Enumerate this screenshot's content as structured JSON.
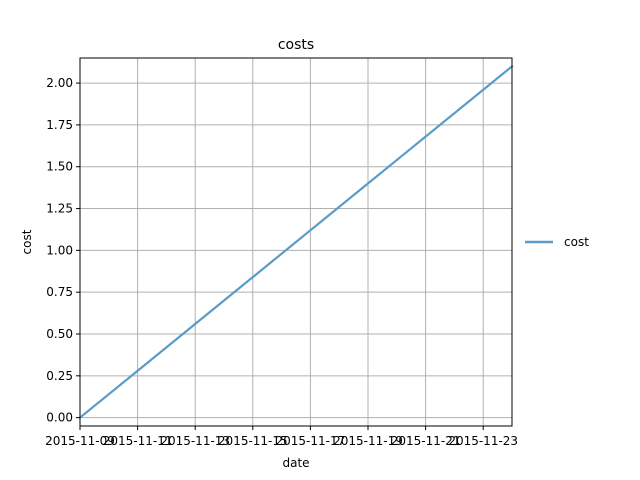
{
  "chart_data": {
    "type": "line",
    "title": "costs",
    "xlabel": "date",
    "ylabel": "cost",
    "x": [
      "2015-11-09",
      "2015-11-24"
    ],
    "series": [
      {
        "name": "cost",
        "x": [
          "2015-11-09",
          "2015-11-24"
        ],
        "values": [
          0.0,
          2.1
        ]
      }
    ],
    "x_ticks": [
      "2015-11-09",
      "2015-11-11",
      "2015-11-13",
      "2015-11-15",
      "2015-11-17",
      "2015-11-19",
      "2015-11-21",
      "2015-11-23"
    ],
    "y_ticks": [
      "0.00",
      "0.25",
      "0.50",
      "0.75",
      "1.00",
      "1.25",
      "1.50",
      "1.75",
      "2.00"
    ],
    "xlim": [
      "2015-11-09",
      "2015-11-24"
    ],
    "ylim": [
      -0.05,
      2.15
    ],
    "grid": true,
    "legend": {
      "placement": "outside-right",
      "entries": [
        "cost"
      ]
    },
    "colors": {
      "line": "#5b9bc8",
      "grid": "#b0b0b0",
      "axes": "#000000"
    }
  }
}
